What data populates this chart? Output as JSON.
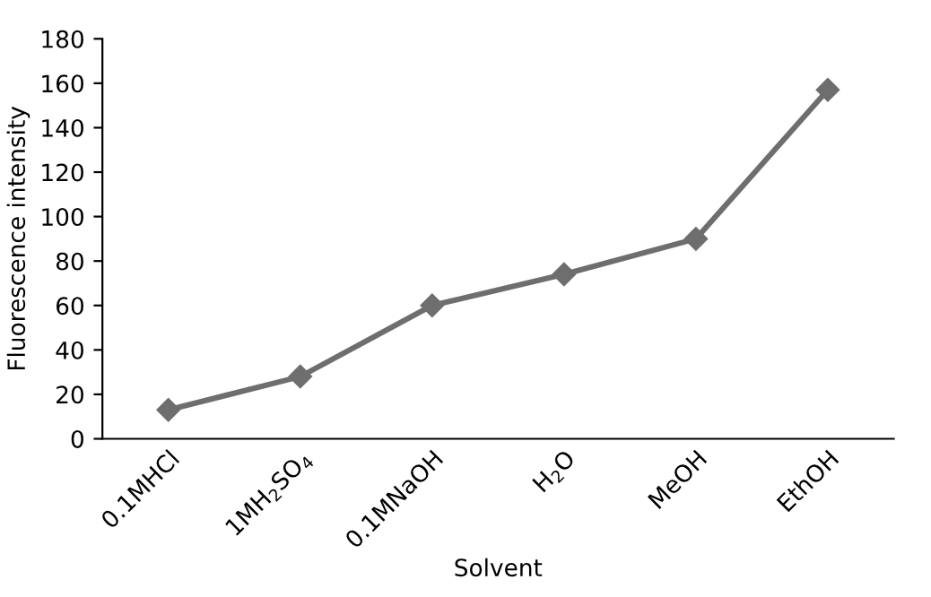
{
  "chart_data": {
    "type": "line",
    "categories": [
      "0.1MHCl",
      "1MH$_{2}$SO$_{4}$",
      "0.1MNaOH",
      "H$_{2}$O",
      "MeOH",
      "EthOH"
    ],
    "series": [
      {
        "color": "#6e6e6e",
        "values": [
          13,
          28,
          60,
          74,
          90,
          157
        ]
      }
    ],
    "xlabel": "Solvent",
    "ylabel": "Fluorescence intensity",
    "ylim": [
      0,
      180
    ],
    "yticks": [
      0,
      20,
      40,
      60,
      80,
      100,
      120,
      140,
      160,
      180
    ],
    "marker": "diamond",
    "line_style": "solid"
  }
}
